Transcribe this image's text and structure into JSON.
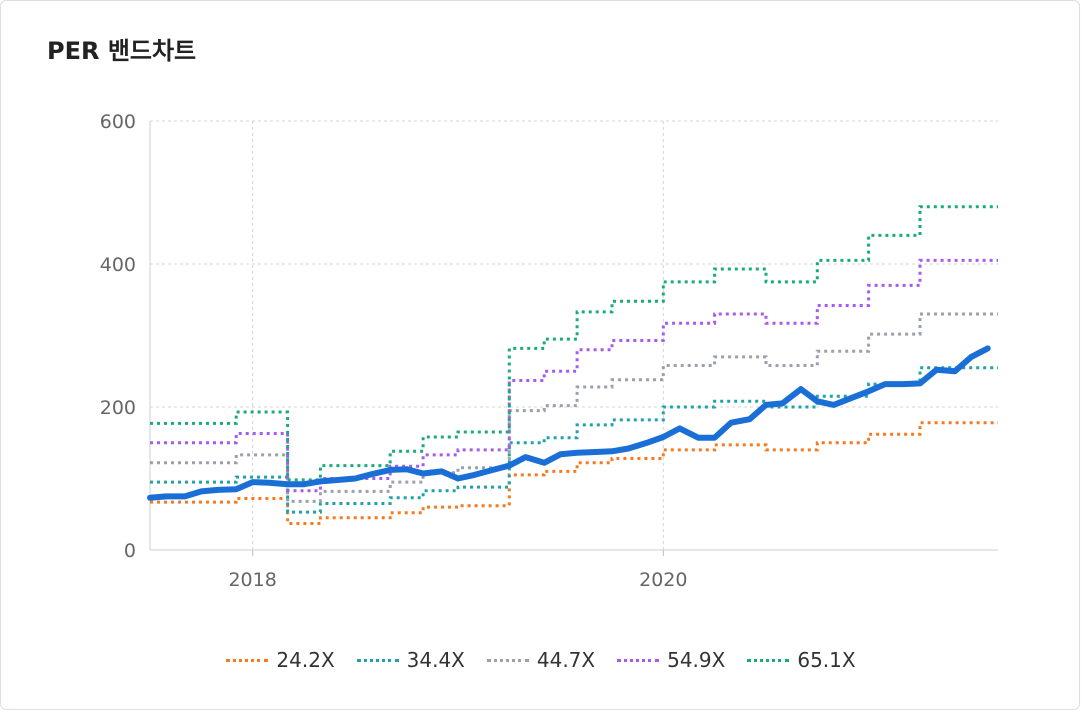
{
  "title": "PER 밴드차트",
  "chart_data": {
    "type": "line",
    "title": "PER 밴드차트",
    "xlabel": "",
    "ylabel": "",
    "ylim": [
      0,
      600
    ],
    "yticks": [
      0,
      200,
      400,
      600
    ],
    "xlim": [
      2017.5,
      2021.63
    ],
    "xticks": [
      {
        "value": 2018,
        "label": "2018"
      },
      {
        "value": 2020,
        "label": "2020"
      }
    ],
    "grid": true,
    "legend_position": "bottom",
    "price_series": {
      "color": "#1a6fd6",
      "x": [
        2017.5,
        2017.58,
        2017.67,
        2017.75,
        2017.83,
        2017.92,
        2018.0,
        2018.08,
        2018.17,
        2018.25,
        2018.33,
        2018.42,
        2018.5,
        2018.58,
        2018.67,
        2018.75,
        2018.83,
        2018.92,
        2019.0,
        2019.08,
        2019.17,
        2019.25,
        2019.33,
        2019.42,
        2019.5,
        2019.58,
        2019.67,
        2019.75,
        2019.83,
        2019.92,
        2020.0,
        2020.08,
        2020.17,
        2020.25,
        2020.33,
        2020.42,
        2020.5,
        2020.58,
        2020.67,
        2020.75,
        2020.83,
        2020.92,
        2021.0,
        2021.08,
        2021.17,
        2021.25,
        2021.33,
        2021.42,
        2021.5,
        2021.58
      ],
      "y": [
        73,
        75,
        75,
        82,
        84,
        85,
        95,
        94,
        92,
        92,
        96,
        98,
        100,
        106,
        112,
        113,
        107,
        110,
        100,
        105,
        112,
        118,
        130,
        122,
        134,
        136,
        137,
        138,
        142,
        150,
        158,
        170,
        157,
        157,
        178,
        183,
        203,
        205,
        225,
        208,
        203,
        213,
        222,
        232,
        232,
        233,
        252,
        250,
        270,
        282
      ]
    },
    "series": [
      {
        "name": "24.2X",
        "color": "#f47b20",
        "step_x": [
          2017.5,
          2017.75,
          2017.92,
          2018.17,
          2018.33,
          2018.5,
          2018.67,
          2018.83,
          2019.0,
          2019.25,
          2019.42,
          2019.58,
          2019.75,
          2020.0,
          2020.25,
          2020.5,
          2020.75,
          2021.0,
          2021.25,
          2021.63
        ],
        "values": [
          67,
          67,
          72,
          37,
          45,
          45,
          52,
          60,
          62,
          105,
          110,
          122,
          128,
          140,
          147,
          140,
          150,
          162,
          178
        ]
      },
      {
        "name": "34.4X",
        "color": "#1fa3a8",
        "step_x": [
          2017.5,
          2017.75,
          2017.92,
          2018.17,
          2018.33,
          2018.5,
          2018.67,
          2018.83,
          2019.0,
          2019.25,
          2019.42,
          2019.58,
          2019.75,
          2020.0,
          2020.25,
          2020.5,
          2020.75,
          2021.0,
          2021.25,
          2021.63
        ],
        "values": [
          95,
          95,
          102,
          53,
          65,
          65,
          73,
          83,
          88,
          150,
          157,
          175,
          182,
          200,
          208,
          200,
          215,
          232,
          255
        ]
      },
      {
        "name": "44.7X",
        "color": "#9aa0ad",
        "step_x": [
          2017.5,
          2017.75,
          2017.92,
          2018.17,
          2018.33,
          2018.5,
          2018.67,
          2018.83,
          2019.0,
          2019.25,
          2019.42,
          2019.58,
          2019.75,
          2020.0,
          2020.25,
          2020.5,
          2020.75,
          2021.0,
          2021.25,
          2021.63
        ],
        "values": [
          122,
          122,
          133,
          68,
          82,
          82,
          95,
          108,
          115,
          195,
          202,
          228,
          238,
          258,
          270,
          258,
          278,
          302,
          330
        ]
      },
      {
        "name": "54.9X",
        "color": "#a45cf0",
        "step_x": [
          2017.5,
          2017.75,
          2017.92,
          2018.17,
          2018.33,
          2018.5,
          2018.67,
          2018.83,
          2019.0,
          2019.25,
          2019.42,
          2019.58,
          2019.75,
          2020.0,
          2020.25,
          2020.5,
          2020.75,
          2021.0,
          2021.25,
          2021.63
        ],
        "values": [
          150,
          150,
          163,
          83,
          100,
          100,
          117,
          133,
          140,
          237,
          250,
          280,
          293,
          317,
          330,
          317,
          342,
          370,
          405
        ]
      },
      {
        "name": "65.1X",
        "color": "#1aab7a",
        "step_x": [
          2017.5,
          2017.75,
          2017.92,
          2018.17,
          2018.33,
          2018.5,
          2018.67,
          2018.83,
          2019.0,
          2019.25,
          2019.42,
          2019.58,
          2019.75,
          2020.0,
          2020.25,
          2020.5,
          2020.75,
          2021.0,
          2021.25,
          2021.63
        ],
        "values": [
          177,
          177,
          193,
          98,
          118,
          118,
          138,
          158,
          165,
          282,
          295,
          333,
          348,
          375,
          393,
          375,
          405,
          440,
          480
        ]
      }
    ]
  }
}
